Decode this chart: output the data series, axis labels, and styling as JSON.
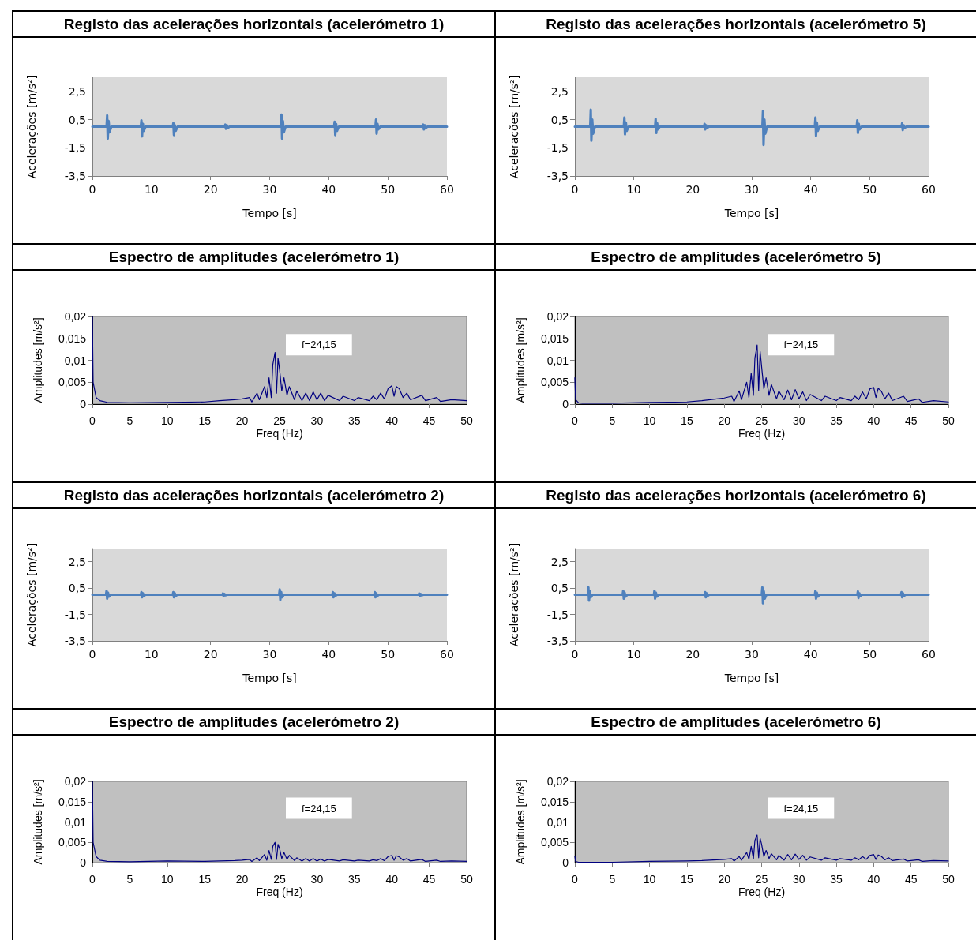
{
  "chart_data": [
    {
      "type": "line",
      "title": "Registo das acelerações horizontais (acelerómetro 1)",
      "xlabel": "Tempo [s]",
      "ylabel": "Acelerações [m/s²]",
      "marker": "none",
      "xlim": [
        0,
        60
      ],
      "xticks": [
        0,
        10,
        20,
        30,
        40,
        50,
        60
      ],
      "ylim": [
        -3.5,
        3.5
      ],
      "yticks": [
        {
          "value": -3.5,
          "label": "-3,5"
        },
        {
          "value": -1.5,
          "label": "-1,5"
        },
        {
          "value": 0.5,
          "label": "0,5"
        },
        {
          "value": 2.5,
          "label": "2,5"
        }
      ],
      "series": [
        {
          "color": "#4f81bd",
          "x": [
            0,
            2.4,
            2.5,
            2.6,
            2.75,
            2.9,
            3.2,
            8.2,
            8.3,
            8.4,
            8.55,
            8.7,
            9,
            13.6,
            13.7,
            13.8,
            13.95,
            14.1,
            14.4,
            22.4,
            22.5,
            22.6,
            22.75,
            22.9,
            23.2,
            31.9,
            32,
            32.1,
            32.25,
            32.4,
            32.7,
            40.9,
            41,
            41.1,
            41.25,
            41.4,
            41.7,
            47.9,
            48,
            48.1,
            48.25,
            48.4,
            48.7,
            55.9,
            56,
            56.1,
            56.25,
            56.4,
            56.7,
            60
          ],
          "values": [
            0,
            0,
            0.8,
            -0.85,
            0.4,
            -0.4,
            0,
            0,
            0.45,
            -0.7,
            0.2,
            -0.3,
            0,
            0,
            0.25,
            -0.6,
            0.1,
            -0.3,
            0,
            0,
            0.15,
            -0.15,
            0.1,
            -0.1,
            0,
            0,
            0.85,
            -0.85,
            0.4,
            -0.4,
            0,
            0,
            0.35,
            -0.6,
            0.2,
            -0.3,
            0,
            0,
            0.5,
            -0.5,
            0.2,
            -0.2,
            0,
            0,
            0.15,
            -0.2,
            0.1,
            -0.1,
            0,
            0
          ]
        }
      ]
    },
    {
      "type": "line",
      "title": "Registo das acelerações horizontais (acelerómetro 5)",
      "xlabel": "Tempo [s]",
      "ylabel": "Acelerações [m/s²]",
      "marker": "none",
      "xlim": [
        0,
        60
      ],
      "xticks": [
        0,
        10,
        20,
        30,
        40,
        50,
        60
      ],
      "ylim": [
        -3.5,
        3.5
      ],
      "yticks": [
        {
          "value": -3.5,
          "label": "-3,5"
        },
        {
          "value": -1.5,
          "label": "-1,5"
        },
        {
          "value": 0.5,
          "label": "0,5"
        },
        {
          "value": 2.5,
          "label": "2,5"
        }
      ],
      "series": [
        {
          "color": "#4f81bd",
          "x": [
            0,
            2.6,
            2.7,
            2.8,
            2.95,
            3.1,
            3.4,
            8.3,
            8.4,
            8.5,
            8.65,
            8.8,
            9.1,
            13.6,
            13.7,
            13.8,
            13.95,
            14.1,
            14.4,
            21.9,
            22,
            22.1,
            22.25,
            22.4,
            22.7,
            31.8,
            31.9,
            32,
            32.15,
            32.3,
            32.6,
            40.7,
            40.8,
            40.9,
            41.05,
            41.2,
            41.5,
            47.8,
            47.9,
            48,
            48.15,
            48.3,
            48.6,
            55.4,
            55.5,
            55.6,
            55.75,
            55.9,
            56.2,
            60
          ],
          "values": [
            0,
            0,
            1.2,
            -1.0,
            0.5,
            -0.5,
            0,
            0,
            0.65,
            -0.55,
            0.3,
            -0.3,
            0,
            0,
            0.55,
            -0.45,
            0.25,
            -0.2,
            0,
            0,
            0.2,
            -0.2,
            0.1,
            -0.1,
            0,
            0,
            1.1,
            -1.3,
            0.5,
            -0.5,
            0,
            0,
            0.65,
            -0.65,
            0.3,
            -0.3,
            0,
            0,
            0.45,
            -0.45,
            0.2,
            -0.2,
            0,
            0,
            0.25,
            -0.25,
            0.1,
            -0.1,
            0,
            0
          ]
        }
      ]
    },
    {
      "type": "line",
      "title": "Espectro de amplitudes (acelerómetro 1)",
      "xlabel": "Freq (Hz)",
      "ylabel": "Amplitudes [m/s²]",
      "marker": "none",
      "xlim": [
        0,
        50
      ],
      "xticks": [
        0,
        5,
        10,
        15,
        20,
        25,
        30,
        35,
        40,
        45,
        50
      ],
      "ylim": [
        0,
        0.02
      ],
      "yticks": [
        {
          "value": 0,
          "label": "0"
        },
        {
          "value": 0.005,
          "label": "0,005"
        },
        {
          "value": 0.01,
          "label": "0,01"
        },
        {
          "value": 0.015,
          "label": "0,015"
        },
        {
          "value": 0.02,
          "label": "0,02"
        }
      ],
      "annotations": [
        "f=24,15"
      ],
      "series": [
        {
          "color": "#000080",
          "x": [
            0,
            0.1,
            0.5,
            1,
            2,
            5,
            10,
            15,
            17,
            19,
            20,
            21,
            21.3,
            22,
            22.3,
            23,
            23.3,
            23.6,
            23.9,
            24.1,
            24.4,
            24.6,
            24.8,
            25,
            25.3,
            25.6,
            26,
            26.3,
            27,
            27.3,
            28,
            28.5,
            29,
            29.5,
            30,
            30.5,
            31,
            31.5,
            33,
            33.5,
            35,
            35.5,
            37,
            37.5,
            38,
            38.5,
            39,
            39.5,
            40,
            40.3,
            40.6,
            41,
            41.5,
            42,
            42.5,
            44,
            44.5,
            46,
            46.5,
            48,
            50
          ],
          "values": [
            0.02,
            0.005,
            0.0015,
            0.0008,
            0.0004,
            0.0003,
            0.0004,
            0.0005,
            0.0008,
            0.001,
            0.0012,
            0.0015,
            0.0005,
            0.0025,
            0.001,
            0.004,
            0.0015,
            0.006,
            0.0015,
            0.009,
            0.0118,
            0.0025,
            0.0105,
            0.008,
            0.003,
            0.006,
            0.002,
            0.004,
            0.001,
            0.003,
            0.0008,
            0.0025,
            0.0008,
            0.0028,
            0.001,
            0.0025,
            0.0008,
            0.002,
            0.0008,
            0.0018,
            0.0008,
            0.0015,
            0.0008,
            0.0018,
            0.001,
            0.0025,
            0.0012,
            0.0035,
            0.0042,
            0.0018,
            0.004,
            0.0035,
            0.0015,
            0.0025,
            0.001,
            0.002,
            0.0008,
            0.0015,
            0.0006,
            0.001,
            0.0008
          ]
        }
      ]
    },
    {
      "type": "line",
      "title": "Espectro de amplitudes (acelerómetro 5)",
      "xlabel": "Freq (Hz)",
      "ylabel": "Amplitudes [m/s²]",
      "marker": "none",
      "xlim": [
        0,
        50
      ],
      "xticks": [
        0,
        5,
        10,
        15,
        20,
        25,
        30,
        35,
        40,
        45,
        50
      ],
      "ylim": [
        0,
        0.02
      ],
      "yticks": [
        {
          "value": 0,
          "label": "0"
        },
        {
          "value": 0.005,
          "label": "0,005"
        },
        {
          "value": 0.01,
          "label": "0,01"
        },
        {
          "value": 0.015,
          "label": "0,015"
        },
        {
          "value": 0.02,
          "label": "0,02"
        }
      ],
      "annotations": [
        "f=24,15"
      ],
      "series": [
        {
          "color": "#000080",
          "x": [
            0,
            0.1,
            0.5,
            1,
            2,
            5,
            10,
            15,
            17,
            19,
            20,
            21,
            21.3,
            22,
            22.3,
            23,
            23.3,
            23.6,
            23.9,
            24.1,
            24.4,
            24.6,
            24.8,
            25,
            25.3,
            25.6,
            26,
            26.3,
            27,
            27.3,
            28,
            28.5,
            29,
            29.5,
            30,
            30.5,
            31,
            31.5,
            33,
            33.5,
            35,
            35.5,
            37,
            37.5,
            38,
            38.5,
            39,
            39.5,
            40,
            40.3,
            40.6,
            41,
            41.5,
            42,
            42.5,
            44,
            44.5,
            46,
            46.5,
            48,
            50
          ],
          "values": [
            0.006,
            0.001,
            0.0003,
            0.0002,
            0.0002,
            0.0002,
            0.0004,
            0.0005,
            0.0008,
            0.0012,
            0.0014,
            0.0018,
            0.0006,
            0.003,
            0.001,
            0.005,
            0.0015,
            0.007,
            0.002,
            0.0105,
            0.0135,
            0.003,
            0.012,
            0.0085,
            0.0035,
            0.006,
            0.002,
            0.0045,
            0.0012,
            0.003,
            0.001,
            0.0032,
            0.001,
            0.0033,
            0.0012,
            0.0028,
            0.0008,
            0.0022,
            0.0008,
            0.0018,
            0.0008,
            0.0015,
            0.0008,
            0.0018,
            0.001,
            0.0028,
            0.0012,
            0.0035,
            0.0038,
            0.0015,
            0.0036,
            0.003,
            0.0012,
            0.0025,
            0.0008,
            0.0018,
            0.0006,
            0.0012,
            0.0004,
            0.0008,
            0.0005
          ]
        }
      ]
    },
    {
      "type": "line",
      "title": "Registo das acelerações horizontais (acelerómetro 2)",
      "xlabel": "Tempo [s]",
      "ylabel": "Acelerações [m/s²]",
      "marker": "none",
      "xlim": [
        0,
        60
      ],
      "xticks": [
        0,
        10,
        20,
        30,
        40,
        50,
        60
      ],
      "ylim": [
        -3.5,
        3.5
      ],
      "yticks": [
        {
          "value": -3.5,
          "label": "-3,5"
        },
        {
          "value": -1.5,
          "label": "-1,5"
        },
        {
          "value": 0.5,
          "label": "0,5"
        },
        {
          "value": 2.5,
          "label": "2,5"
        }
      ],
      "series": [
        {
          "color": "#4f81bd",
          "x": [
            0,
            2.3,
            2.4,
            2.5,
            2.65,
            2.8,
            3.1,
            8.2,
            8.3,
            8.4,
            8.55,
            8.7,
            9,
            13.6,
            13.7,
            13.8,
            13.95,
            14.1,
            14.4,
            22,
            22.1,
            22.2,
            22.35,
            22.5,
            22.8,
            31.6,
            31.7,
            31.8,
            31.95,
            32.1,
            32.4,
            40.6,
            40.7,
            40.8,
            40.95,
            41.1,
            41.4,
            47.7,
            47.8,
            47.9,
            48.05,
            48.2,
            48.5,
            55.2,
            55.3,
            55.4,
            55.55,
            55.7,
            56,
            60
          ],
          "values": [
            0,
            0,
            0.3,
            -0.3,
            0.15,
            -0.15,
            0,
            0,
            0.2,
            -0.2,
            0.1,
            -0.1,
            0,
            0,
            0.2,
            -0.2,
            0.1,
            -0.1,
            0,
            0,
            0.1,
            -0.1,
            0.05,
            -0.05,
            0,
            0,
            0.4,
            -0.4,
            0.2,
            -0.2,
            0,
            0,
            0.2,
            -0.2,
            0.1,
            -0.1,
            0,
            0,
            0.2,
            -0.2,
            0.1,
            -0.1,
            0,
            0,
            0.1,
            -0.1,
            0.05,
            -0.05,
            0,
            0
          ]
        }
      ]
    },
    {
      "type": "line",
      "title": "Registo das acelerações horizontais (acelerómetro 6)",
      "xlabel": "Tempo [s]",
      "ylabel": "Acelerações [m/s²]",
      "marker": "none",
      "xlim": [
        0,
        60
      ],
      "xticks": [
        0,
        10,
        20,
        30,
        40,
        50,
        60
      ],
      "ylim": [
        -3.5,
        3.5
      ],
      "yticks": [
        {
          "value": -3.5,
          "label": "-3,5"
        },
        {
          "value": -1.5,
          "label": "-1,5"
        },
        {
          "value": 0.5,
          "label": "0,5"
        },
        {
          "value": 2.5,
          "label": "2,5"
        }
      ],
      "series": [
        {
          "color": "#4f81bd",
          "x": [
            0,
            2.2,
            2.3,
            2.4,
            2.55,
            2.7,
            3,
            8.1,
            8.2,
            8.3,
            8.45,
            8.6,
            8.9,
            13.4,
            13.5,
            13.6,
            13.75,
            13.9,
            14.2,
            22,
            22.1,
            22.2,
            22.35,
            22.5,
            22.8,
            31.7,
            31.8,
            31.9,
            32.05,
            32.2,
            32.5,
            40.7,
            40.8,
            40.9,
            41.05,
            41.2,
            41.5,
            47.9,
            48,
            48.1,
            48.25,
            48.4,
            48.7,
            55.3,
            55.4,
            55.5,
            55.65,
            55.8,
            56.1,
            60
          ],
          "values": [
            0,
            0,
            0.56,
            -0.45,
            0.25,
            -0.2,
            0,
            0,
            0.3,
            -0.3,
            0.15,
            -0.15,
            0,
            0,
            0.3,
            -0.3,
            0.15,
            -0.15,
            0,
            0,
            0.2,
            -0.2,
            0.1,
            -0.1,
            0,
            0,
            0.56,
            -0.65,
            0.25,
            -0.3,
            0,
            0,
            0.3,
            -0.3,
            0.15,
            -0.15,
            0,
            0,
            0.25,
            -0.25,
            0.1,
            -0.1,
            0,
            0,
            0.2,
            -0.2,
            0.1,
            -0.1,
            0,
            0
          ]
        }
      ]
    },
    {
      "type": "line",
      "title": "Espectro de amplitudes (acelerómetro 2)",
      "xlabel": "Freq (Hz)",
      "ylabel": "Amplitudes [m/s²]",
      "marker": "none",
      "xlim": [
        0,
        50
      ],
      "xticks": [
        0,
        5,
        10,
        15,
        20,
        25,
        30,
        35,
        40,
        45,
        50
      ],
      "ylim": [
        0,
        0.02
      ],
      "yticks": [
        {
          "value": 0,
          "label": "0"
        },
        {
          "value": 0.005,
          "label": "0,005"
        },
        {
          "value": 0.01,
          "label": "0,01"
        },
        {
          "value": 0.015,
          "label": "0,015"
        },
        {
          "value": 0.02,
          "label": "0,02"
        }
      ],
      "annotations": [
        "f=24,15"
      ],
      "series": [
        {
          "color": "#000080",
          "x": [
            0,
            0.1,
            0.5,
            1,
            2,
            5,
            10,
            15,
            17,
            19,
            20,
            21,
            21.3,
            22,
            22.3,
            23,
            23.3,
            23.6,
            23.9,
            24.1,
            24.4,
            24.6,
            24.8,
            25,
            25.3,
            25.6,
            26,
            26.3,
            27,
            27.3,
            28,
            28.5,
            29,
            29.5,
            30,
            30.5,
            31,
            31.5,
            33,
            33.5,
            35,
            35.5,
            37,
            37.5,
            38,
            38.5,
            39,
            39.5,
            40,
            40.3,
            40.6,
            41,
            41.5,
            42,
            42.5,
            44,
            44.5,
            46,
            46.5,
            48,
            50
          ],
          "values": [
            0.02,
            0.005,
            0.0015,
            0.0006,
            0.0003,
            0.0002,
            0.0004,
            0.0003,
            0.0004,
            0.0005,
            0.0006,
            0.0008,
            0.0003,
            0.0012,
            0.0005,
            0.002,
            0.0006,
            0.003,
            0.0008,
            0.004,
            0.005,
            0.0008,
            0.0045,
            0.0035,
            0.001,
            0.0025,
            0.0008,
            0.0018,
            0.0005,
            0.0012,
            0.0004,
            0.001,
            0.0004,
            0.001,
            0.0004,
            0.0009,
            0.0004,
            0.0008,
            0.0004,
            0.0007,
            0.0004,
            0.0006,
            0.0004,
            0.0007,
            0.0005,
            0.001,
            0.0005,
            0.0015,
            0.0018,
            0.0006,
            0.0017,
            0.0014,
            0.0006,
            0.001,
            0.0004,
            0.0008,
            0.0003,
            0.0006,
            0.0003,
            0.0004,
            0.0003
          ]
        }
      ]
    },
    {
      "type": "line",
      "title": "Espectro de amplitudes (acelerómetro 6)",
      "xlabel": "Freq (Hz)",
      "ylabel": "Amplitudes [m/s²]",
      "marker": "none",
      "xlim": [
        0,
        50
      ],
      "xticks": [
        0,
        5,
        10,
        15,
        20,
        25,
        30,
        35,
        40,
        45,
        50
      ],
      "ylim": [
        0,
        0.02
      ],
      "yticks": [
        {
          "value": 0,
          "label": "0"
        },
        {
          "value": 0.005,
          "label": "0,005"
        },
        {
          "value": 0.01,
          "label": "0,01"
        },
        {
          "value": 0.015,
          "label": "0,015"
        },
        {
          "value": 0.02,
          "label": "0,02"
        }
      ],
      "annotations": [
        "f=24,15"
      ],
      "series": [
        {
          "color": "#000080",
          "x": [
            0,
            0.1,
            0.5,
            1,
            2,
            5,
            10,
            15,
            17,
            19,
            20,
            21,
            21.3,
            22,
            22.3,
            23,
            23.3,
            23.6,
            23.9,
            24.1,
            24.4,
            24.6,
            24.8,
            25,
            25.3,
            25.6,
            26,
            26.3,
            27,
            27.3,
            28,
            28.5,
            29,
            29.5,
            30,
            30.5,
            31,
            31.5,
            33,
            33.5,
            35,
            35.5,
            37,
            37.5,
            38,
            38.5,
            39,
            39.5,
            40,
            40.3,
            40.6,
            41,
            41.5,
            42,
            42.5,
            44,
            44.5,
            46,
            46.5,
            48,
            50
          ],
          "values": [
            0.0015,
            0.0003,
            0.0001,
            0.0001,
            0.0001,
            0.0001,
            0.0003,
            0.0004,
            0.0005,
            0.0007,
            0.0008,
            0.001,
            0.0004,
            0.0015,
            0.0006,
            0.0025,
            0.0008,
            0.004,
            0.001,
            0.0055,
            0.0068,
            0.0012,
            0.006,
            0.0045,
            0.0015,
            0.003,
            0.001,
            0.0022,
            0.0007,
            0.0018,
            0.0006,
            0.002,
            0.0007,
            0.0021,
            0.0008,
            0.0018,
            0.0006,
            0.0014,
            0.0006,
            0.0012,
            0.0006,
            0.001,
            0.0006,
            0.0012,
            0.0007,
            0.0015,
            0.0008,
            0.0018,
            0.002,
            0.0008,
            0.0019,
            0.0016,
            0.0007,
            0.0012,
            0.0005,
            0.0009,
            0.0004,
            0.0007,
            0.0003,
            0.0005,
            0.0004
          ]
        }
      ]
    }
  ]
}
